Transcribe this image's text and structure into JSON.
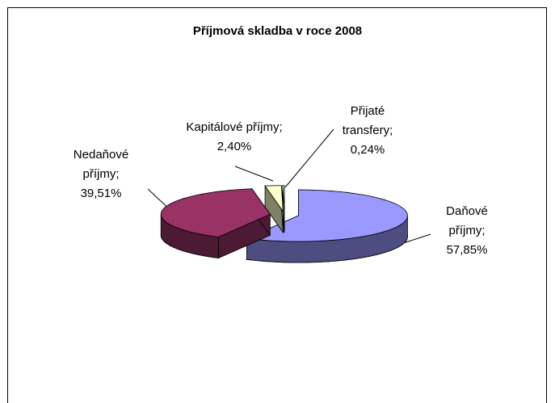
{
  "chart_data": {
    "type": "pie3d",
    "title": "Příjmová skladba v roce 2008",
    "categories": [
      "Daňové příjmy;",
      "Nedaňové příjmy;",
      "Kapitálové příjmy;",
      "Přijaté transfery;"
    ],
    "values": [
      57.85,
      39.51,
      2.4,
      0.24
    ],
    "value_labels": [
      "57,85%",
      "39,51%",
      "2,40%",
      "0,24%"
    ],
    "colors": [
      "#9999ff",
      "#993366",
      "#ffffcc",
      "#ccffff"
    ],
    "exploded": true
  }
}
